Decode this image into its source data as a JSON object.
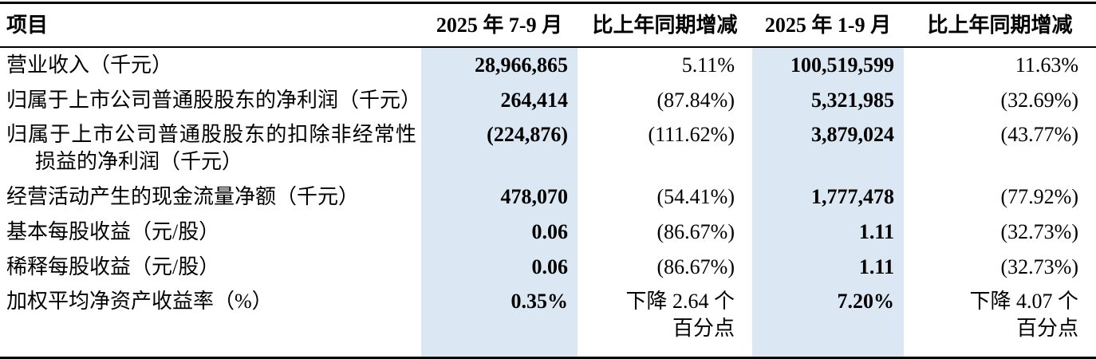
{
  "meta": {
    "highlight_color": "#dbe7f3",
    "text_color": "#000000",
    "border_color": "#000000"
  },
  "table": {
    "headers": [
      {
        "label": "项目"
      },
      {
        "label": "2025 年 7-9 月"
      },
      {
        "label": "比上年同期增减"
      },
      {
        "label": "2025 年 1-9 月"
      },
      {
        "label": "比上年同期增减"
      }
    ],
    "rows": [
      {
        "item": "营业收入（千元）",
        "current_quarter": "28,966,865",
        "quarter_change": "5.11%",
        "year_to_date": "100,519,599",
        "ytd_change": "11.63%"
      },
      {
        "item": "归属于上市公司普通股股东的净利润（千元）",
        "current_quarter": "264,414",
        "quarter_change": "(87.84%)",
        "year_to_date": "5,321,985",
        "ytd_change": "(32.69%)"
      },
      {
        "item": "归属于上市公司普通股股东的扣除非经常性损益的净利润（千元）",
        "current_quarter": "(224,876)",
        "quarter_change": "(111.62%)",
        "year_to_date": "3,879,024",
        "ytd_change": "(43.77%)"
      },
      {
        "item": "经营活动产生的现金流量净额（千元）",
        "current_quarter": "478,070",
        "quarter_change": "(54.41%)",
        "year_to_date": "1,777,478",
        "ytd_change": "(77.92%)"
      },
      {
        "item": "基本每股收益（元/股）",
        "current_quarter": "0.06",
        "quarter_change": "(86.67%)",
        "year_to_date": "1.11",
        "ytd_change": "(32.73%)"
      },
      {
        "item": "稀释每股收益（元/股）",
        "current_quarter": "0.06",
        "quarter_change": "(86.67%)",
        "year_to_date": "1.11",
        "ytd_change": "(32.73%)"
      },
      {
        "item": "加权平均净资产收益率（%）",
        "current_quarter": "0.35%",
        "quarter_change": "下降 2.64 个\n百分点",
        "year_to_date": "7.20%",
        "ytd_change": "下降 4.07 个\n百分点"
      }
    ]
  }
}
